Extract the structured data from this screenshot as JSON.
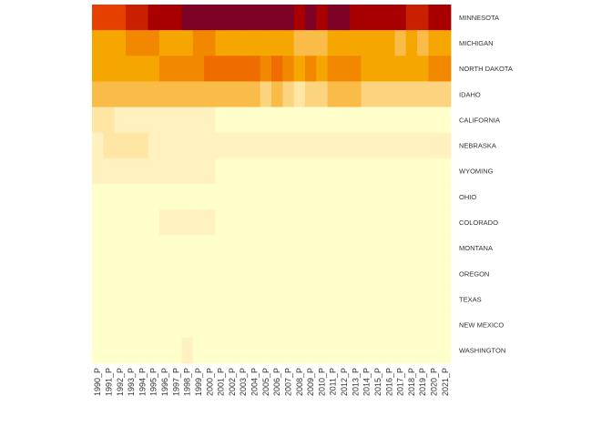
{
  "chart_data": {
    "type": "heatmap",
    "title": "",
    "xlabel": "",
    "ylabel": "",
    "legend": "none",
    "grid": false,
    "columns": [
      "1990_P",
      "1991_P",
      "1992_P",
      "1993_P",
      "1994_P",
      "1995_P",
      "1996_P",
      "1997_P",
      "1998_P",
      "1999_P",
      "2000_P",
      "2001_P",
      "2002_P",
      "2003_P",
      "2004_P",
      "2005_P",
      "2006_P",
      "2007_P",
      "2008_P",
      "2009_P",
      "2010_P",
      "2011_P",
      "2012_P",
      "2013_P",
      "2014_P",
      "2015_P",
      "2016_P",
      "2017_P",
      "2018_P",
      "2019_P",
      "2020_P",
      "2021_P"
    ],
    "rows": [
      "MINNESOTA",
      "MICHIGAN",
      "NORTH DAKOTA",
      "IDAHO",
      "CALIFORNIA",
      "NEBRASKA",
      "WYOMING",
      "OHIO",
      "COLORADO",
      "MONTANA",
      "OREGON",
      "TEXAS",
      "NEW MEXICO",
      "WASHINGTON"
    ],
    "color_scale": [
      "#ffffcc",
      "#fff2c0",
      "#ffe6a4",
      "#fcd480",
      "#f9bc48",
      "#f6a600",
      "#f28800",
      "#ee6c00",
      "#e64000",
      "#c82000",
      "#a80000",
      "#7d0025"
    ],
    "levels": [
      [
        8,
        8,
        8,
        9,
        9,
        10,
        10,
        10,
        11,
        11,
        11,
        11,
        11,
        11,
        11,
        11,
        11,
        11,
        10,
        11,
        10,
        11,
        11,
        10,
        10,
        10,
        10,
        10,
        9,
        9,
        10,
        10
      ],
      [
        5,
        5,
        5,
        6,
        6,
        6,
        5,
        5,
        5,
        6,
        6,
        5,
        5,
        5,
        5,
        5,
        5,
        5,
        4,
        4,
        4,
        5,
        5,
        5,
        5,
        5,
        5,
        4,
        5,
        4,
        5,
        5
      ],
      [
        5,
        5,
        5,
        5,
        5,
        5,
        6,
        6,
        6,
        6,
        7,
        7,
        7,
        7,
        7,
        6,
        7,
        6,
        5,
        6,
        5,
        6,
        6,
        6,
        5,
        5,
        5,
        5,
        5,
        5,
        6,
        6
      ],
      [
        4,
        4,
        4,
        4,
        4,
        4,
        4,
        4,
        4,
        4,
        4,
        4,
        4,
        4,
        4,
        3,
        4,
        3,
        2,
        3,
        3,
        4,
        4,
        4,
        3,
        3,
        3,
        3,
        3,
        3,
        3,
        3
      ],
      [
        2,
        2,
        1,
        1,
        1,
        1,
        1,
        1,
        1,
        1,
        1,
        0,
        0,
        0,
        0,
        0,
        0,
        0,
        0,
        0,
        0,
        0,
        0,
        0,
        0,
        0,
        0,
        0,
        0,
        0,
        0,
        0
      ],
      [
        1,
        2,
        2,
        2,
        2,
        1,
        1,
        1,
        1,
        1,
        1,
        1,
        1,
        1,
        1,
        1,
        1,
        1,
        1,
        1,
        1,
        1,
        1,
        1,
        1,
        1,
        1,
        1,
        1,
        1,
        1,
        1
      ],
      [
        1,
        1,
        1,
        1,
        1,
        1,
        1,
        1,
        1,
        1,
        1,
        0,
        0,
        0,
        0,
        0,
        0,
        0,
        0,
        0,
        0,
        0,
        0,
        0,
        0,
        0,
        0,
        0,
        0,
        0,
        0,
        0
      ],
      [
        0,
        0,
        0,
        0,
        0,
        0,
        0,
        0,
        0,
        0,
        0,
        0,
        0,
        0,
        0,
        0,
        0,
        0,
        0,
        0,
        0,
        0,
        0,
        0,
        0,
        0,
        0,
        0,
        0,
        0,
        0,
        0
      ],
      [
        0,
        0,
        0,
        0,
        0,
        0,
        1,
        1,
        1,
        1,
        1,
        0,
        0,
        0,
        0,
        0,
        0,
        0,
        0,
        0,
        0,
        0,
        0,
        0,
        0,
        0,
        0,
        0,
        0,
        0,
        0,
        0
      ],
      [
        0,
        0,
        0,
        0,
        0,
        0,
        0,
        0,
        0,
        0,
        0,
        0,
        0,
        0,
        0,
        0,
        0,
        0,
        0,
        0,
        0,
        0,
        0,
        0,
        0,
        0,
        0,
        0,
        0,
        0,
        0,
        0
      ],
      [
        0,
        0,
        0,
        0,
        0,
        0,
        0,
        0,
        0,
        0,
        0,
        0,
        0,
        0,
        0,
        0,
        0,
        0,
        0,
        0,
        0,
        0,
        0,
        0,
        0,
        0,
        0,
        0,
        0,
        0,
        0,
        0
      ],
      [
        0,
        0,
        0,
        0,
        0,
        0,
        0,
        0,
        0,
        0,
        0,
        0,
        0,
        0,
        0,
        0,
        0,
        0,
        0,
        0,
        0,
        0,
        0,
        0,
        0,
        0,
        0,
        0,
        0,
        0,
        0,
        0
      ],
      [
        0,
        0,
        0,
        0,
        0,
        0,
        0,
        0,
        0,
        0,
        0,
        0,
        0,
        0,
        0,
        0,
        0,
        0,
        0,
        0,
        0,
        0,
        0,
        0,
        0,
        0,
        0,
        0,
        0,
        0,
        0,
        0
      ],
      [
        0,
        0,
        0,
        0,
        0,
        0,
        0,
        0,
        1,
        0,
        0,
        0,
        0,
        0,
        0,
        0,
        0,
        0,
        0,
        0,
        0,
        0,
        0,
        0,
        0,
        0,
        0,
        0,
        0,
        0,
        0,
        0
      ]
    ]
  }
}
